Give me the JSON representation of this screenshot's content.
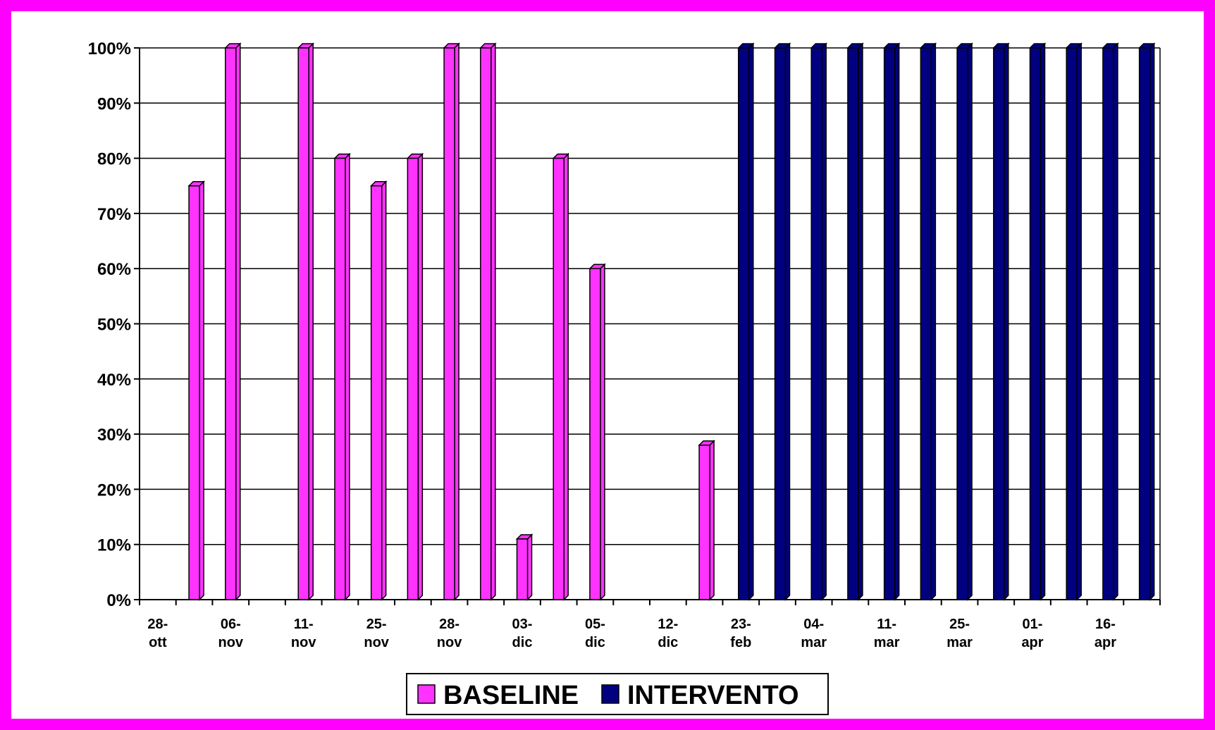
{
  "colors": {
    "frame": "#ff00ff",
    "baseline": "#ff33ff",
    "intervento": "#000080",
    "grid": "#000000"
  },
  "chart_data": {
    "type": "bar",
    "yticks": [
      "0%",
      "10%",
      "20%",
      "30%",
      "40%",
      "50%",
      "60%",
      "70%",
      "80%",
      "90%",
      "100%"
    ],
    "ylim": [
      0,
      100
    ],
    "grid": true,
    "legend_position": "bottom",
    "x_labels": [
      [
        "28-",
        "ott"
      ],
      [
        "06-",
        "nov"
      ],
      [
        "11-",
        "nov"
      ],
      [
        "25-",
        "nov"
      ],
      [
        "28-",
        "nov"
      ],
      [
        "03-",
        "dic"
      ],
      [
        "05-",
        "dic"
      ],
      [
        "12-",
        "dic"
      ],
      [
        "23-",
        "feb"
      ],
      [
        "04-",
        "mar"
      ],
      [
        "11-",
        "mar"
      ],
      [
        "25-",
        "mar"
      ],
      [
        "01-",
        "apr"
      ],
      [
        "16-",
        "apr"
      ]
    ],
    "series": [
      {
        "name": "BASELINE",
        "values": [
          0,
          75,
          100,
          0,
          100,
          80,
          75,
          80,
          100,
          100,
          11,
          80,
          60,
          0,
          0,
          28,
          0,
          0,
          0,
          0,
          0,
          0,
          0,
          0,
          0,
          0,
          0,
          0
        ]
      },
      {
        "name": "INTERVENTO",
        "values": [
          0,
          0,
          0,
          0,
          0,
          0,
          0,
          0,
          0,
          0,
          0,
          0,
          0,
          0,
          0,
          0,
          100,
          100,
          100,
          100,
          100,
          100,
          100,
          100,
          100,
          100,
          100,
          100
        ]
      }
    ]
  }
}
